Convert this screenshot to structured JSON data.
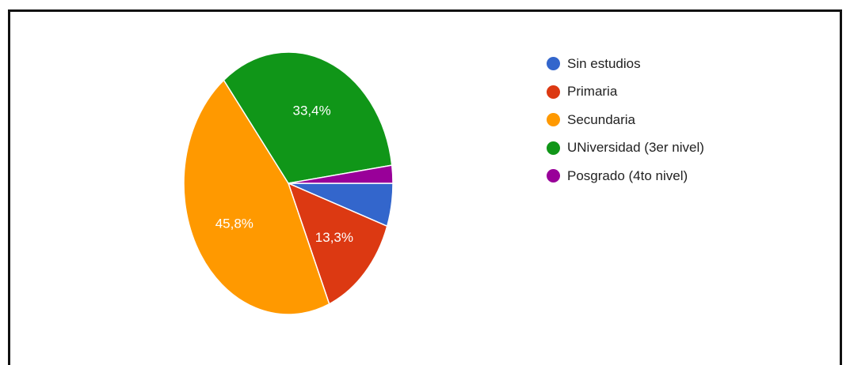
{
  "chart_data": {
    "type": "pie",
    "slices": [
      {
        "label": "Sin estudios",
        "value": 5.3,
        "color": "#3366cc",
        "data_label": ""
      },
      {
        "label": "Primaria",
        "value": 13.3,
        "color": "#dc3912",
        "data_label": "13,3%"
      },
      {
        "label": "Secundaria",
        "value": 45.8,
        "color": "#ff9900",
        "data_label": "45,8%"
      },
      {
        "label": "UNiversidad (3er nivel)",
        "value": 33.4,
        "color": "#109618",
        "data_label": "33,4%"
      },
      {
        "label": "Posgrado (4to nivel)",
        "value": 2.2,
        "color": "#990099",
        "data_label": ""
      }
    ],
    "start_direction": "right (3 o'clock)",
    "order": "clockwise",
    "legend_position": "right"
  }
}
